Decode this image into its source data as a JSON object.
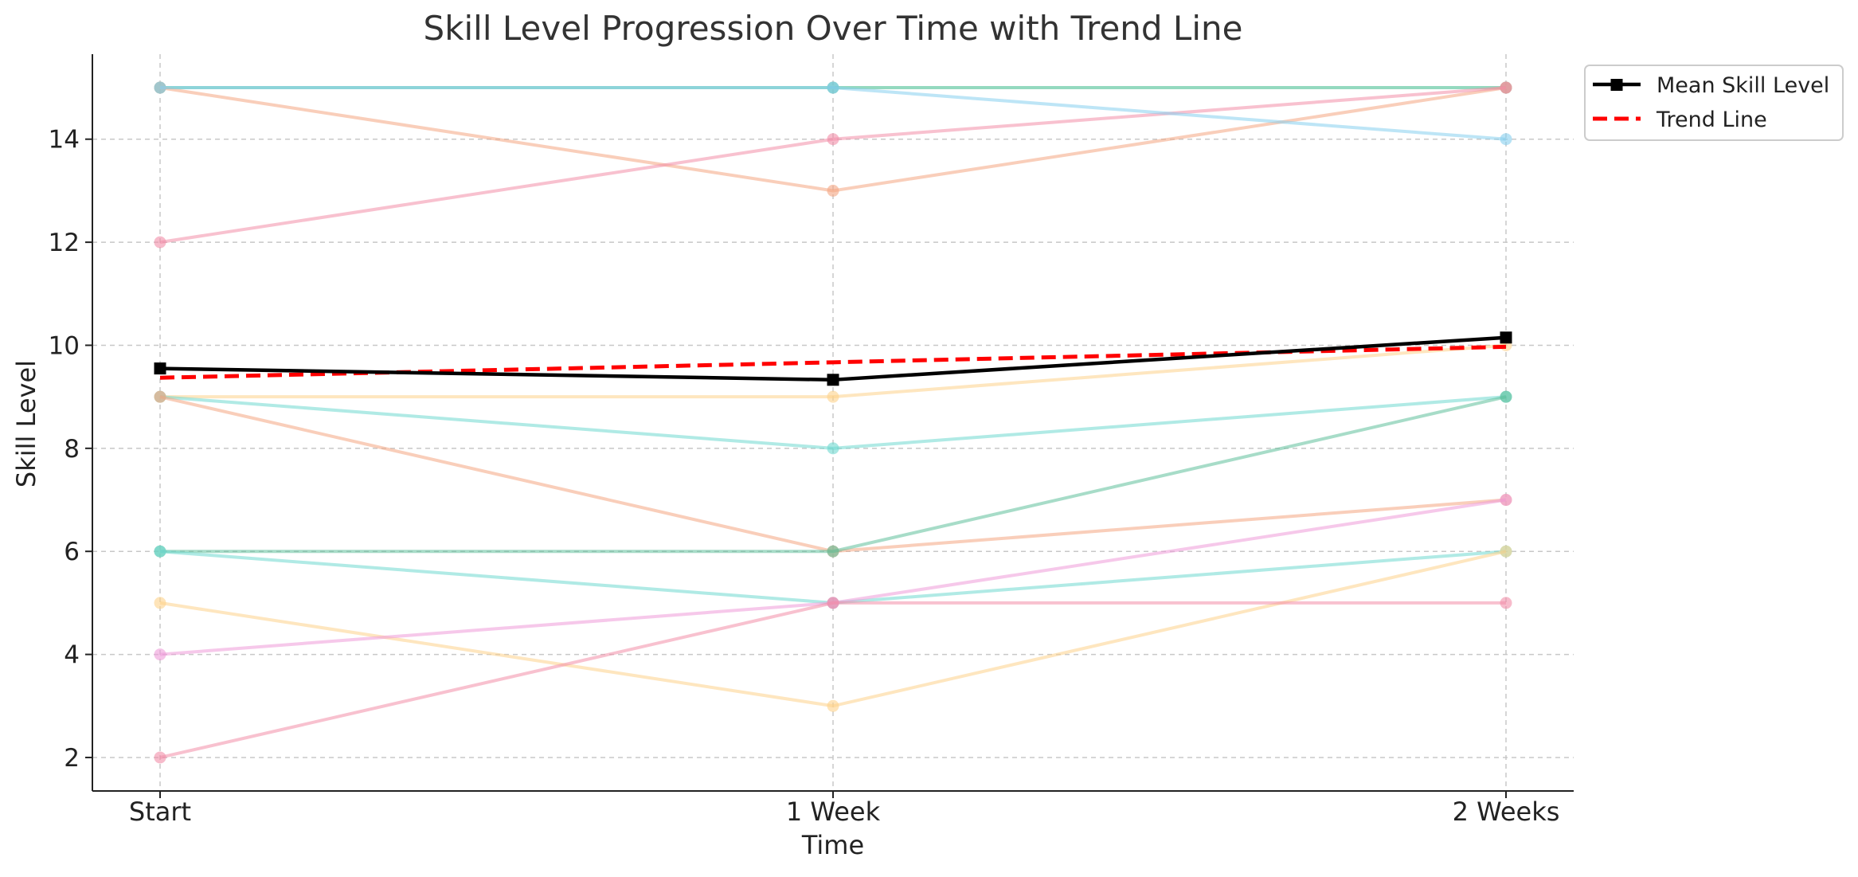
{
  "chart_data": {
    "type": "line",
    "title": "Skill Level Progression Over Time with Trend Line",
    "xlabel": "Time",
    "ylabel": "Skill Level",
    "categories": [
      "Start",
      "1 Week",
      "2 Weeks"
    ],
    "yticks": [
      2,
      4,
      6,
      8,
      10,
      12,
      14
    ],
    "ylim": [
      1.35,
      15.65
    ],
    "grid": true,
    "legend_placement": "outside-top-right",
    "individual_series": [
      {
        "values": [
          15,
          15,
          15
        ],
        "color": "#3cb98a"
      },
      {
        "values": [
          15,
          13,
          15
        ],
        "color": "#f4a582"
      },
      {
        "values": [
          12,
          14,
          15
        ],
        "color": "#f28ea8"
      },
      {
        "values": [
          15,
          15,
          14
        ],
        "color": "#87cfee"
      },
      {
        "values": [
          9,
          9,
          10
        ],
        "color": "#fdd28a"
      },
      {
        "values": [
          9,
          8,
          9
        ],
        "color": "#6fd8d0"
      },
      {
        "values": [
          9,
          6,
          7
        ],
        "color": "#f4a582"
      },
      {
        "values": [
          6,
          6,
          9
        ],
        "color": "#5fbf9a"
      },
      {
        "values": [
          6,
          5,
          6
        ],
        "color": "#6fd8d0"
      },
      {
        "values": [
          5,
          3,
          6
        ],
        "color": "#fdd28a"
      },
      {
        "values": [
          4,
          5,
          7
        ],
        "color": "#ee9bd8"
      },
      {
        "values": [
          2,
          5,
          5
        ],
        "color": "#f28ea8"
      }
    ],
    "series": [
      {
        "name": "Mean Skill Level",
        "values": [
          9.55,
          9.33,
          10.15
        ],
        "color": "#000000",
        "marker": "square"
      },
      {
        "name": "Trend Line",
        "values": [
          9.37,
          9.67,
          9.97
        ],
        "color": "#ff0000",
        "style": "dashed"
      }
    ]
  }
}
